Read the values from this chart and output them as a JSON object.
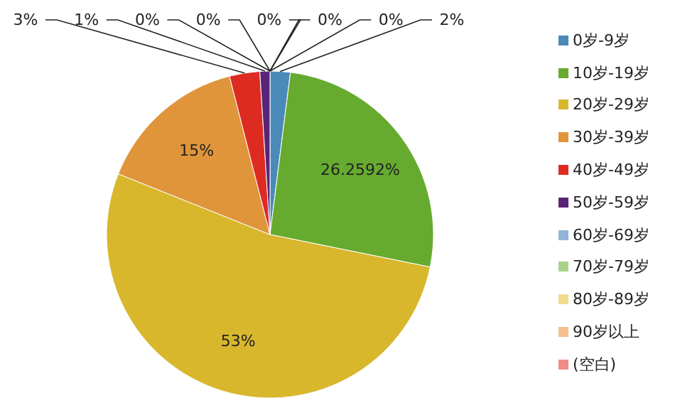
{
  "chart_data": {
    "type": "pie",
    "categories": [
      "0岁-9岁",
      "10岁-19岁",
      "20岁-29岁",
      "30岁-39岁",
      "40岁-49岁",
      "50岁-59岁",
      "60岁-69岁",
      "70岁-79岁",
      "80岁-89岁",
      "90岁以上",
      "(空白)"
    ],
    "values": [
      2,
      26.2592,
      53,
      15,
      3,
      1,
      0,
      0,
      0,
      0,
      0
    ],
    "colors": [
      "#4a8ab8",
      "#66ab2f",
      "#d8b72c",
      "#e0953a",
      "#dd2b22",
      "#5a2479",
      "#94b6d6",
      "#a8d28a",
      "#efdc8d",
      "#f6bf8e",
      "#f08b88"
    ],
    "value_labels": [
      "2%",
      "26.2592%",
      "53%",
      "15%",
      "3%",
      "1%",
      "0%",
      "0%",
      "0%",
      "0%",
      "0%"
    ],
    "legend": "right"
  }
}
